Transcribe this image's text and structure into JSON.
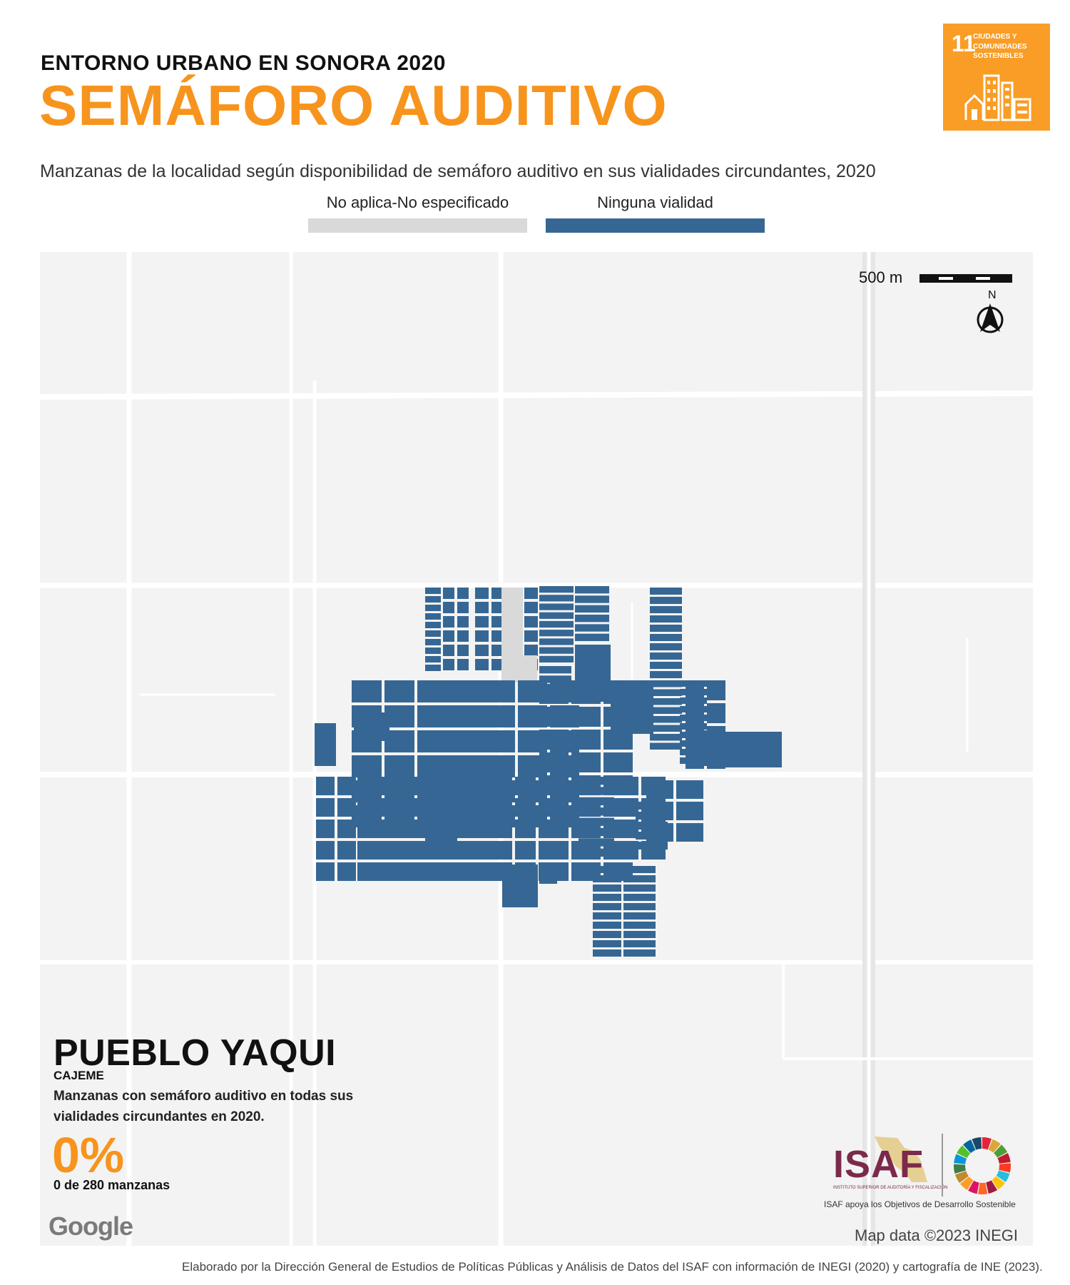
{
  "header": {
    "kicker": "ENTORNO URBANO EN SONORA 2020",
    "title": "SEMÁFORO AUDITIVO",
    "subtitle": "Manzanas de la localidad según disponibilidad de semáforo auditivo en sus vialidades circundantes, 2020"
  },
  "ods": {
    "number": "11",
    "text": "CIUDADES Y COMUNIDADES SOSTENIBLES",
    "color": "#f99d26"
  },
  "legend": [
    {
      "label": "No aplica-No especificado",
      "color": "#d9d9d9"
    },
    {
      "label": "Ninguna vialidad",
      "color": "#366794"
    }
  ],
  "map": {
    "scale_label": "500 m",
    "north_label": "N",
    "background": "#f3f3f3",
    "road_color": "#ffffff"
  },
  "location": {
    "name": "PUEBLO YAQUI",
    "municipality": "CAJEME",
    "description": "Manzanas con semáforo auditivo en todas sus vialidades circundantes en 2020.",
    "percent": "0%",
    "count": "0 de 280 manzanas"
  },
  "logos": {
    "google": "Google",
    "isaf": "ISAF",
    "isaf_small": "INSTITUTO SUPERIOR DE AUDITORÍA Y FISCALIZACIÓN",
    "isaf_caption": "ISAF apoya los Objetivos de Desarrollo Sostenible"
  },
  "attribution": "Map data ©2023 INEGI",
  "footer": "Elaborado por la Dirección General de Estudios de Políticas Públicas y Análisis de Datos del ISAF con información de INEGI (2020) y cartografía de INE (2023)."
}
